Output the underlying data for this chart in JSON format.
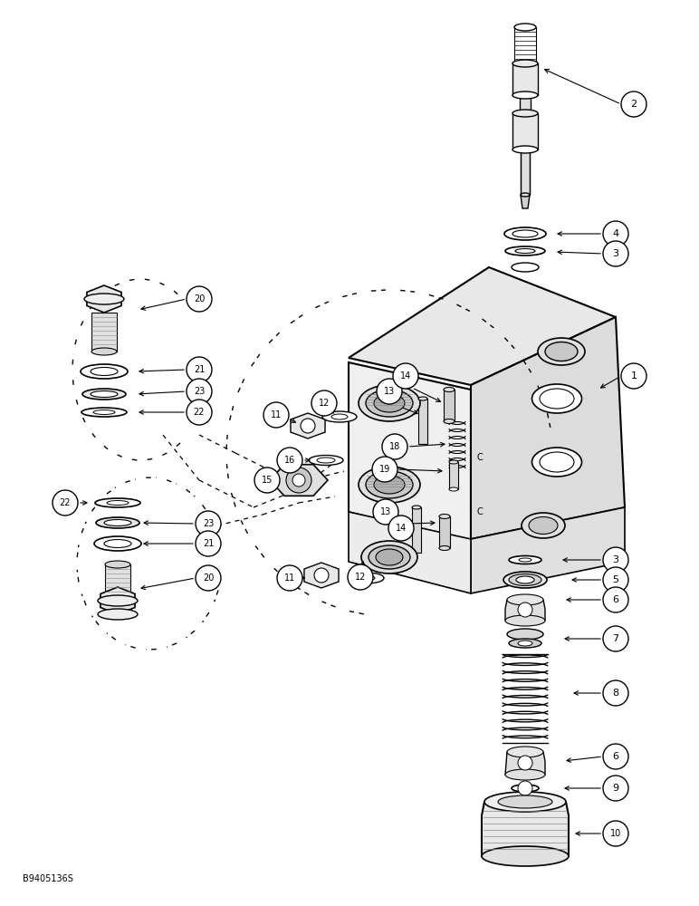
{
  "bg_color": "#ffffff",
  "fig_width": 7.72,
  "fig_height": 10.0,
  "watermark": "B9405136S",
  "lc": "black",
  "lw": 1.0
}
